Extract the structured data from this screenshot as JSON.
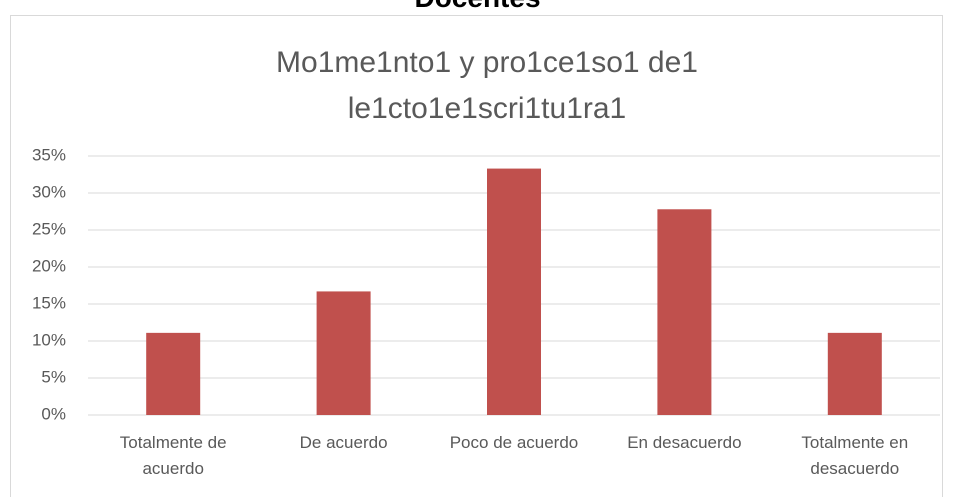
{
  "heading": "Docentes",
  "chart_data": {
    "type": "bar",
    "title": "Mo1me1nto1 y pro1ce1so1 de1 le1cto1e1scri1tu1ra1",
    "categories": [
      "Totalmente de acuerdo",
      "De acuerdo",
      "Poco de acuerdo",
      "En desacuerdo",
      "Totalmente en desacuerdo"
    ],
    "values": [
      11.1,
      16.7,
      33.3,
      27.8,
      11.1
    ],
    "color": "#c0504d",
    "ylim": [
      0,
      35
    ],
    "yticks": [
      {
        "value": 0,
        "label": "0%"
      },
      {
        "value": 5,
        "label": "5%"
      },
      {
        "value": 10,
        "label": "10%"
      },
      {
        "value": 15,
        "label": "15%"
      },
      {
        "value": 20,
        "label": "20%"
      },
      {
        "value": 25,
        "label": "25%"
      },
      {
        "value": 30,
        "label": "30%"
      },
      {
        "value": 35,
        "label": "35%"
      }
    ],
    "grid": true
  }
}
